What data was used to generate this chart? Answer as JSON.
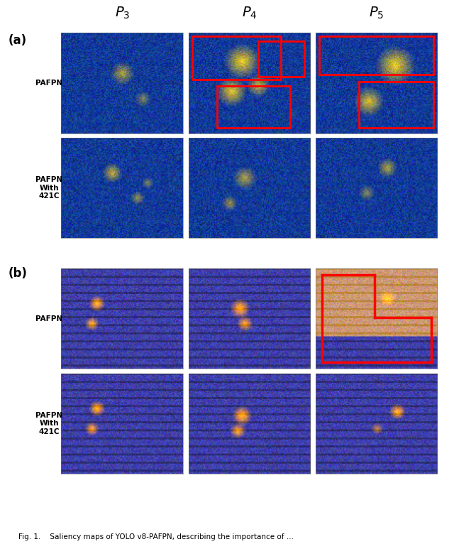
{
  "title": "Fig. 1.    Saliency maps of YOLO v8-PAFPN, describing the importance of ...",
  "col_labels": [
    "$P_3$",
    "$P_4$",
    "$P_5$"
  ],
  "row_labels": [
    "PAFPN",
    "PAFPN\nWith\n421C",
    "PAFPN",
    "PAFPN\nWith\n421C"
  ],
  "section_labels": [
    "(a)",
    "(b)"
  ],
  "background": "#ffffff",
  "fig_width": 6.4,
  "fig_height": 7.73
}
